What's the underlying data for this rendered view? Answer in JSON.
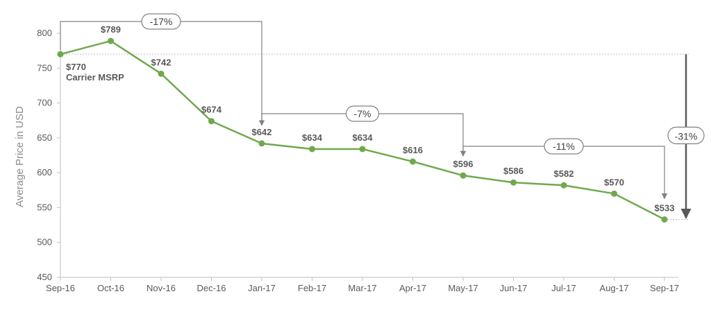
{
  "chart_data": {
    "type": "line",
    "title": "",
    "xlabel": "",
    "ylabel": "Average Price in USD",
    "ylim": [
      450,
      800
    ],
    "yticks": [
      450,
      500,
      550,
      600,
      650,
      700,
      750,
      800
    ],
    "grid": false,
    "categories": [
      "Sep-16",
      "Oct-16",
      "Nov-16",
      "Dec-16",
      "Jan-17",
      "Feb-17",
      "Mar-17",
      "Apr-17",
      "May-17",
      "Jun-17",
      "Jul-17",
      "Aug-17",
      "Sep-17"
    ],
    "series": [
      {
        "values": [
          770,
          789,
          742,
          674,
          642,
          634,
          634,
          616,
          596,
          586,
          582,
          570,
          533
        ]
      }
    ],
    "data_labels": [
      "$770",
      "$789",
      "$742",
      "$674",
      "$642",
      "$634",
      "$634",
      "$616",
      "$596",
      "$586",
      "$582",
      "$570",
      "$533"
    ],
    "reference_label": "Carrier MSRP",
    "annotations": [
      {
        "text": "-17%",
        "from": "Sep-16",
        "to": "Jan-17"
      },
      {
        "text": "-7%",
        "from": "Jan-17",
        "to": "May-17"
      },
      {
        "text": "-11%",
        "from": "May-17",
        "to": "Sep-17"
      },
      {
        "text": "-31%",
        "from": "Sep-16",
        "to": "Sep-17"
      }
    ],
    "colors": {
      "line": "#70a84e",
      "axis": "#bfbfbf",
      "text": "#595959",
      "annotation": "#808080"
    }
  }
}
